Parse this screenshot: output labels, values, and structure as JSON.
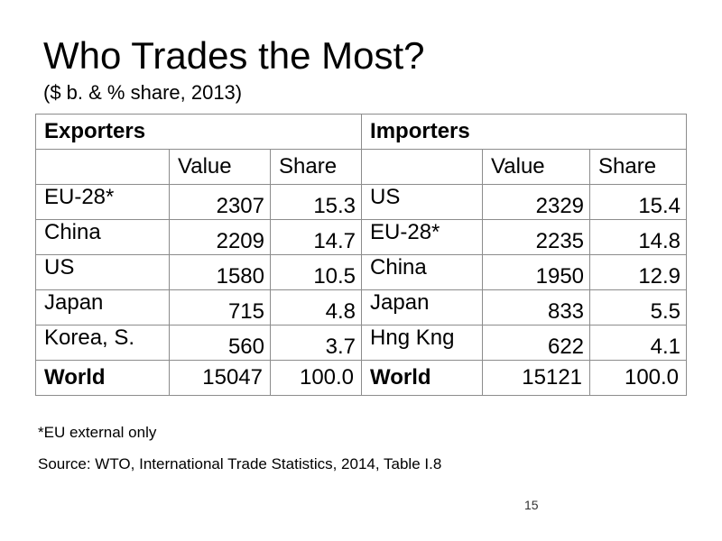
{
  "title": "Who Trades the Most?",
  "subtitle": "($ b. & % share, 2013)",
  "table": {
    "exporters_label": "Exporters",
    "importers_label": "Importers",
    "value_label": "Value",
    "share_label": "Share",
    "exporters": [
      {
        "name": "EU-28*",
        "value": "2307",
        "share": "15.3"
      },
      {
        "name": "China",
        "value": "2209",
        "share": "14.7"
      },
      {
        "name": "US",
        "value": "1580",
        "share": "10.5"
      },
      {
        "name": "Japan",
        "value": "715",
        "share": "4.8"
      },
      {
        "name": "Korea, S.",
        "value": "560",
        "share": "3.7"
      }
    ],
    "importers": [
      {
        "name": "US",
        "value": "2329",
        "share": "15.4"
      },
      {
        "name": "EU-28*",
        "value": "2235",
        "share": "14.8"
      },
      {
        "name": "China",
        "value": "1950",
        "share": "12.9"
      },
      {
        "name": "Japan",
        "value": "833",
        "share": "5.5"
      },
      {
        "name": "Hng Kng",
        "value": "622",
        "share": "4.1"
      }
    ],
    "exporters_world": {
      "name": "World",
      "value": "15047",
      "share": "100.0"
    },
    "importers_world": {
      "name": "World",
      "value": "15121",
      "share": "100.0"
    }
  },
  "footnote": "*EU external only",
  "source": "Source:  WTO, International Trade Statistics, 2014, Table I.8",
  "page_number": "15"
}
